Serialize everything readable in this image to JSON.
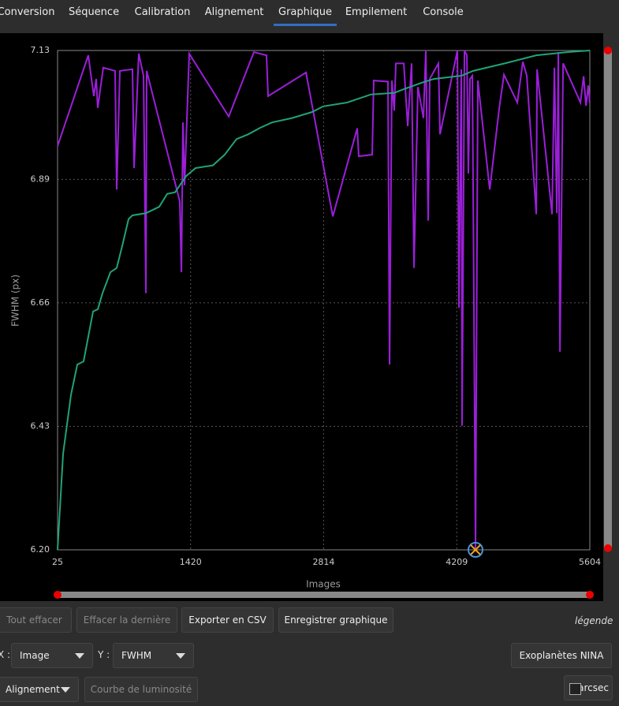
{
  "tabs": [
    {
      "label": "Conversion",
      "active": false
    },
    {
      "label": "Séquence",
      "active": false
    },
    {
      "label": "Calibration",
      "active": false
    },
    {
      "label": "Alignement",
      "active": false
    },
    {
      "label": "Graphique",
      "active": true
    },
    {
      "label": "Empilement",
      "active": false
    },
    {
      "label": "Console",
      "active": false
    }
  ],
  "chart_data": {
    "type": "line",
    "xlabel": "Images",
    "ylabel": "FWHM (px)",
    "grid": true,
    "xlim": [
      25,
      5604
    ],
    "xticks": [
      25,
      1420,
      2814,
      4209,
      5604
    ],
    "ylim": [
      6.2,
      7.13
    ],
    "yticks": [
      {
        "value": 6.2,
        "label": "6.20"
      },
      6.43,
      6.66,
      6.89,
      7.13
    ],
    "series": [
      {
        "color": "#9b1fd8",
        "x": [
          25,
          347,
          405,
          430,
          446,
          504,
          628,
          645,
          678,
          810,
          827,
          876,
          926,
          951,
          959,
          1017,
          1306,
          1323,
          1339,
          1356,
          1405,
          1819,
          2083,
          2215,
          2232,
          2629,
          2910,
          3166,
          3182,
          3323,
          3339,
          3488,
          3505,
          3529,
          3554,
          3571,
          3654,
          3695,
          3736,
          3761,
          3802,
          3860,
          3885,
          3910,
          3926,
          4017,
          4034,
          4216,
          4232,
          4257,
          4265,
          4290,
          4315,
          4331,
          4348,
          4373,
          4406,
          4430,
          4555,
          4654,
          4704,
          4844,
          4902,
          4943,
          5043,
          5051,
          5208,
          5233,
          5258,
          5274,
          5291,
          5324,
          5506,
          5539,
          5564,
          5588,
          5604
        ],
        "values": [
          6.952,
          7.121,
          7.045,
          7.077,
          7.023,
          7.098,
          7.092,
          6.871,
          7.092,
          7.095,
          6.911,
          7.124,
          7.083,
          6.678,
          7.092,
          7.051,
          6.849,
          6.717,
          6.996,
          6.879,
          7.124,
          7.007,
          7.127,
          7.121,
          7.045,
          7.089,
          6.821,
          6.985,
          6.933,
          6.936,
          7.074,
          7.072,
          6.545,
          7.074,
          7.018,
          7.106,
          7.106,
          6.989,
          7.106,
          6.725,
          7.062,
          7.004,
          7.13,
          6.813,
          7.077,
          7.106,
          6.974,
          7.13,
          6.651,
          7.095,
          6.431,
          7.13,
          7.121,
          6.901,
          7.077,
          7.083,
          6.203,
          7.074,
          6.871,
          7.022,
          7.085,
          7.033,
          7.109,
          7.083,
          6.825,
          7.095,
          6.825,
          7.098,
          6.827,
          7.127,
          6.569,
          7.106,
          7.033,
          7.082,
          7.027,
          7.065,
          7.033
        ]
      },
      {
        "color": "#1fa37a",
        "x": [
          25,
          83,
          166,
          232,
          298,
          397,
          447,
          496,
          579,
          645,
          703,
          769,
          810,
          951,
          1091,
          1174,
          1257,
          1372,
          1471,
          1653,
          1777,
          1901,
          2025,
          2149,
          2273,
          2480,
          2687,
          2811,
          3059,
          3307,
          3554,
          3654,
          3844,
          3968,
          4257,
          4381,
          4712,
          5043,
          5373,
          5604
        ],
        "values": [
          6.2,
          6.379,
          6.489,
          6.545,
          6.551,
          6.644,
          6.648,
          6.678,
          6.717,
          6.725,
          6.766,
          6.816,
          6.823,
          6.827,
          6.839,
          6.863,
          6.866,
          6.896,
          6.911,
          6.916,
          6.936,
          6.965,
          6.974,
          6.986,
          6.996,
          7.004,
          7.015,
          7.026,
          7.033,
          7.048,
          7.051,
          7.058,
          7.07,
          7.077,
          7.083,
          7.092,
          7.106,
          7.121,
          7.127,
          7.13
        ]
      }
    ]
  },
  "controls": {
    "clear_all": "Tout effacer",
    "clear_last": "Effacer la dernière",
    "export_csv": "Exporter en CSV",
    "save_graph": "Enregistrer graphique",
    "legend": "légende",
    "x_label": "X :",
    "x_value": "Image",
    "y_label": "Y :",
    "y_value": "FWHM",
    "exoplanets": "Exoplanètes NINA",
    "mode": "Alignement",
    "light_curve": "Courbe de luminosité",
    "arcsec": "arcsec"
  }
}
